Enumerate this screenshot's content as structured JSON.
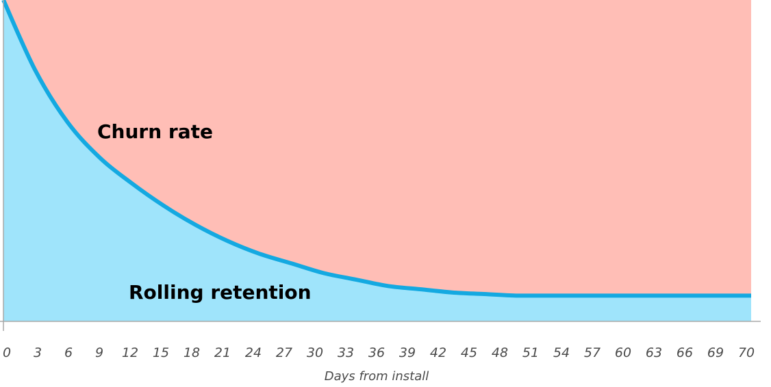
{
  "chart_data": {
    "type": "area",
    "title": "",
    "xlabel": "Days from install",
    "ylabel": "",
    "x_ticks": [
      0,
      3,
      6,
      9,
      12,
      15,
      18,
      21,
      24,
      27,
      30,
      33,
      36,
      39,
      42,
      45,
      48,
      51,
      54,
      57,
      60,
      63,
      66,
      69,
      70
    ],
    "xlim": [
      0,
      70
    ],
    "ylim": [
      0,
      100
    ],
    "grid": false,
    "series": [
      {
        "name": "Rolling retention",
        "x": [
          0,
          3,
          6,
          9,
          12,
          15,
          18,
          21,
          24,
          27,
          30,
          33,
          36,
          39,
          42,
          45,
          48,
          51,
          54,
          57,
          60,
          63,
          66,
          69,
          70
        ],
        "values": [
          100,
          78,
          62,
          51,
          43,
          36,
          30,
          25,
          21,
          18,
          15,
          13,
          11,
          10,
          9,
          8.5,
          8,
          8,
          8,
          8,
          8,
          8,
          8,
          8,
          8
        ],
        "color": "#14a9e1",
        "fill": "#9fe4fb"
      }
    ],
    "regions": [
      {
        "label": "Churn rate",
        "color": "#f4553a",
        "fill": "#ffbeb6"
      },
      {
        "label": "Rolling retention",
        "color": "#14a9e1",
        "fill": "#9fe4fb"
      }
    ],
    "axis_color": "#a8a8a8"
  }
}
